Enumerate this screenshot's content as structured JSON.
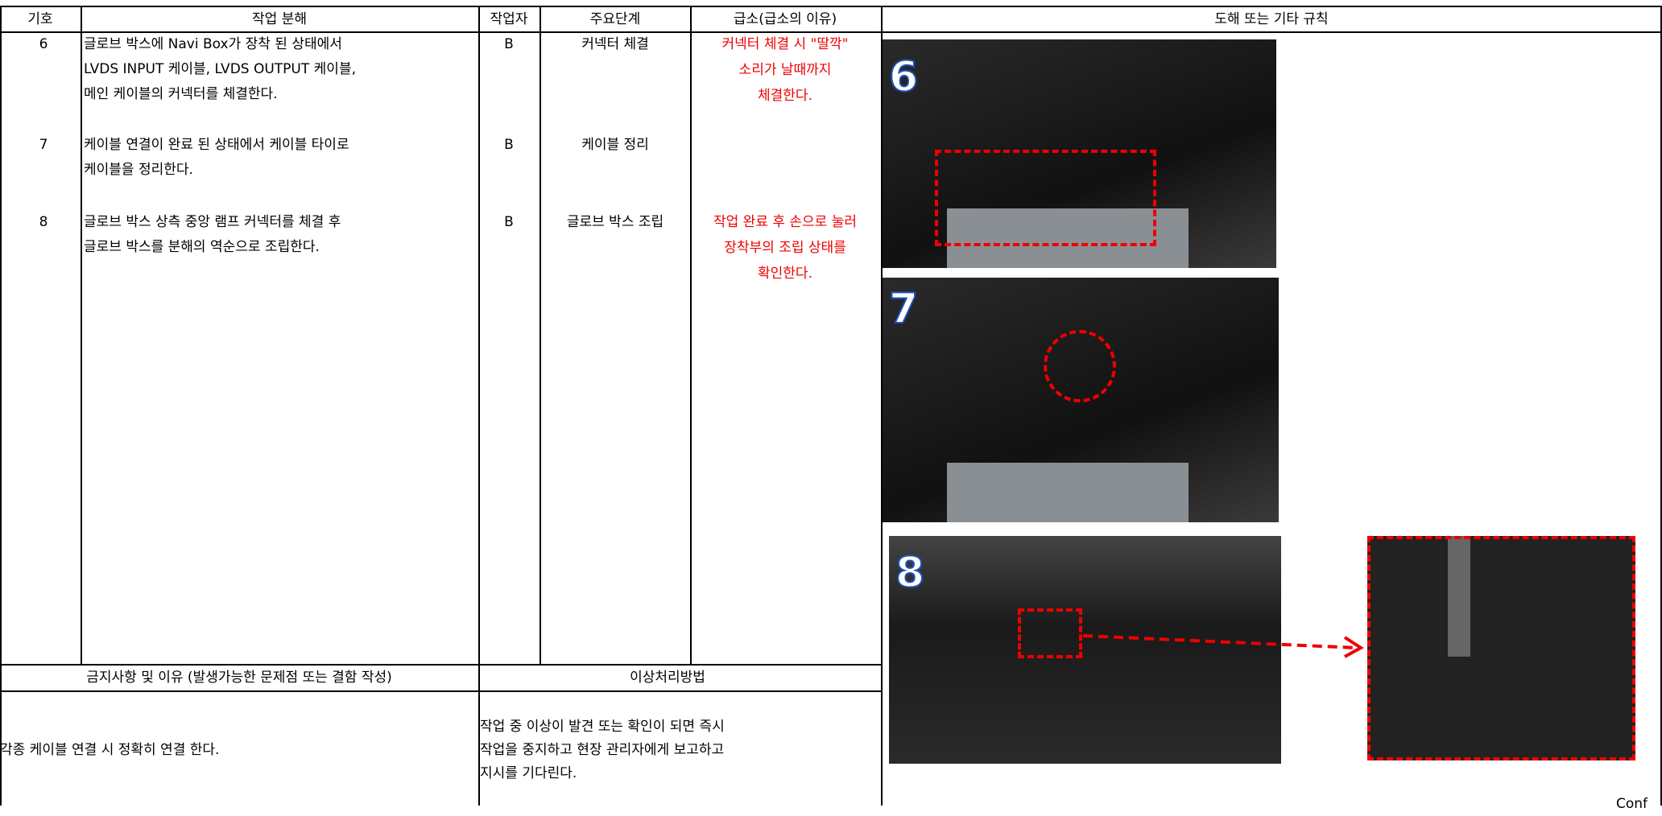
{
  "header": {
    "columns": [
      "기호",
      "작업 분해",
      "작업자",
      "주요단계",
      "급소(급소의 이유)",
      "도해 또는 기타 규칙"
    ]
  },
  "rows": [
    {
      "no": "6",
      "desc": [
        "글로브 박스에 Navi Box가 장착 된 상태에서",
        "LVDS INPUT 케이블, LVDS OUTPUT 케이블,",
        "메인 케이블의 커넥터를 체결한다."
      ],
      "worker": "B",
      "step": "커넥터 체결",
      "key": [
        "커넥터 체결 시 \"딸깍\"",
        "소리가 날때까지",
        "체결한다."
      ]
    },
    {
      "no": "7",
      "desc": [
        "케이블 연결이 완료 된 상태에서 케이블 타이로",
        "케이블을 정리한다."
      ],
      "worker": "B",
      "step": "케이블 정리",
      "key": []
    },
    {
      "no": "8",
      "desc": [
        "글로브 박스 상측 중앙 램프 커넥터를 체결 후",
        "글로브 박스를 분해의 역순으로 조립한다."
      ],
      "worker": "B",
      "step": "글로브 박스 조립",
      "key": [
        "작업 완료 후 손으로 눌러",
        "장착부의 조립 상태를",
        "확인한다."
      ]
    }
  ],
  "bottom": {
    "prohibition_title": "금지사항 및 이유 (발생가능한 문제점 또는 결함 작성)",
    "prohibition_text": "각종 케이블 연결 시 정확히 연결 한다.",
    "handling_title": "이상처리방법",
    "handling_text": [
      "작업 중 이상이 발견 또는 확인이 되면 즉시",
      "작업을 중지하고 현장 관리자에게 보고하고",
      "지시를 기다린다."
    ]
  },
  "figures": {
    "labels": [
      "6",
      "7",
      "8"
    ],
    "footer": "Conf"
  }
}
